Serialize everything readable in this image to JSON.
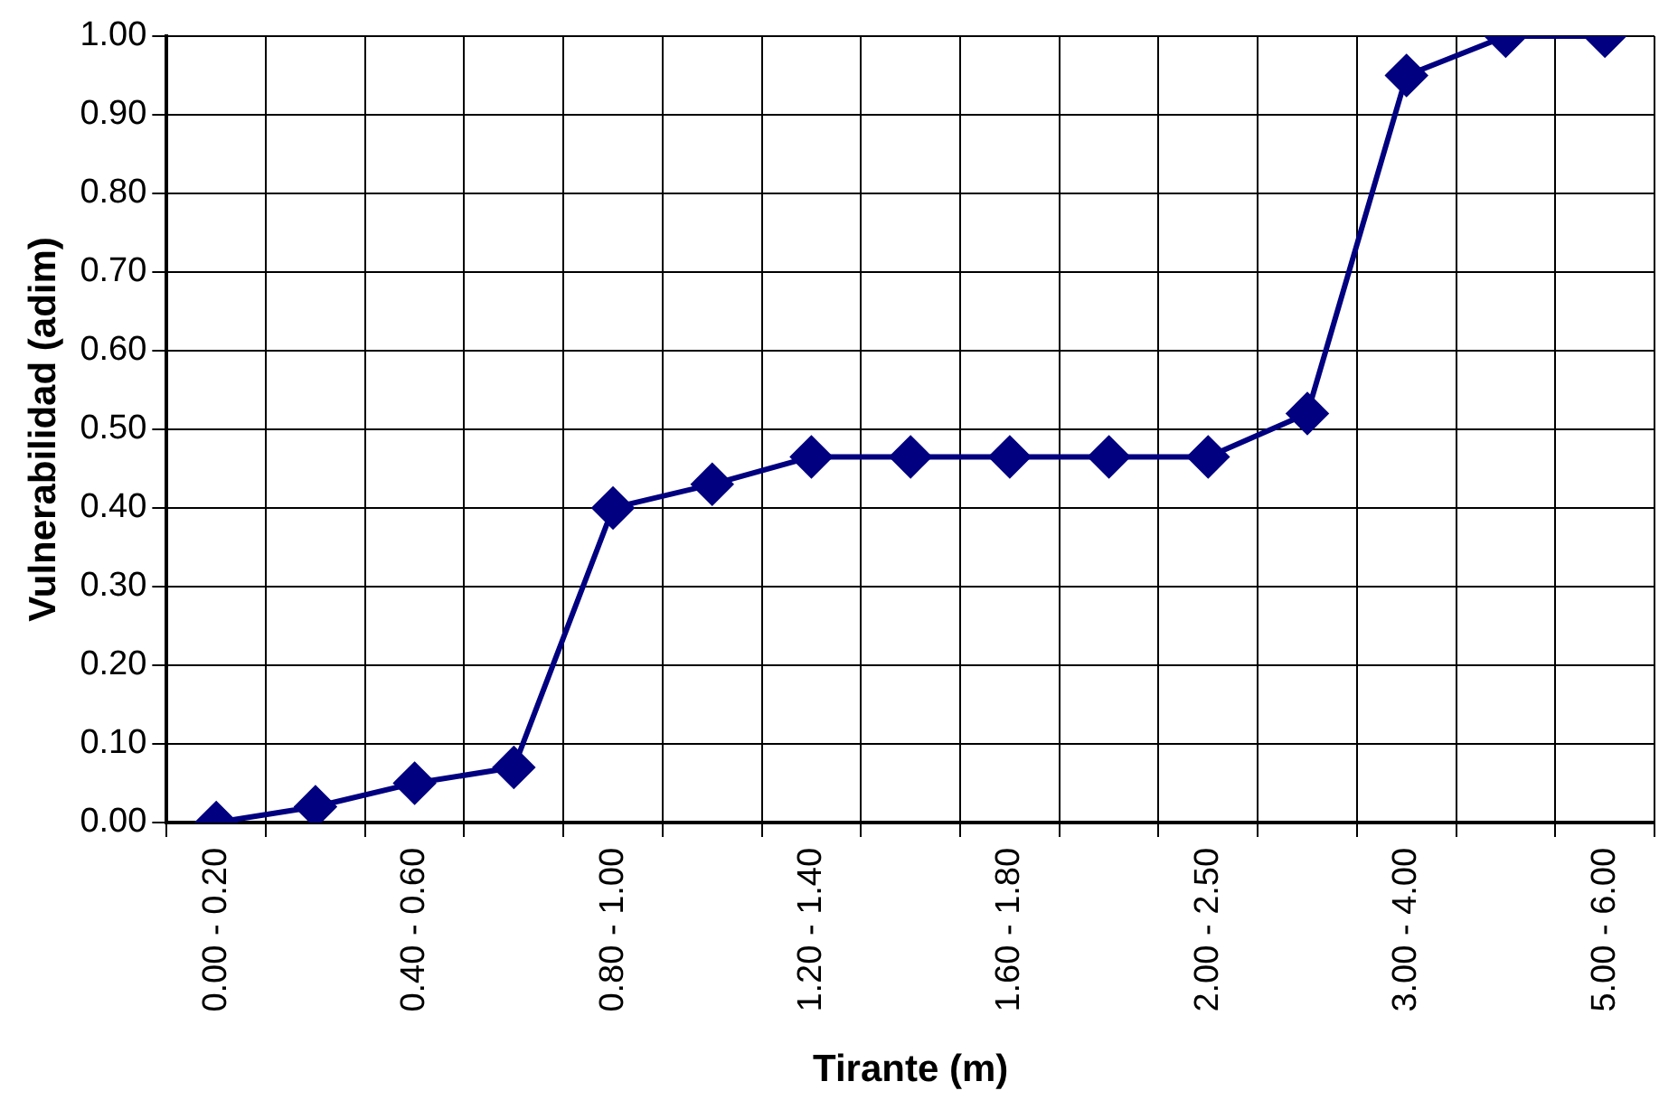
{
  "chart_data": {
    "type": "line",
    "xlabel": "Tirante (m)",
    "ylabel": "Vulnerabilidad (adim)",
    "categories": [
      "0.00 - 0.20",
      null,
      "0.40 - 0.60",
      null,
      "0.80 - 1.00",
      null,
      "1.20 - 1.40",
      null,
      "1.60 - 1.80",
      null,
      "2.00 - 2.50",
      null,
      "3.00 - 4.00",
      null,
      "5.00 - 6.00"
    ],
    "series": [
      {
        "color": "#000080",
        "values": [
          0.0,
          0.02,
          0.05,
          0.07,
          0.4,
          0.43,
          0.465,
          0.465,
          0.465,
          0.465,
          0.465,
          0.52,
          0.95,
          1.0,
          1.0
        ]
      }
    ],
    "ylim": [
      0,
      1
    ],
    "yticks": [
      {
        "value": 0,
        "label": "0.00"
      },
      {
        "value": 0.1,
        "label": "0.10"
      },
      {
        "value": 0.2,
        "label": "0.20"
      },
      {
        "value": 0.3,
        "label": "0.30"
      },
      {
        "value": 0.4,
        "label": "0.40"
      },
      {
        "value": 0.5,
        "label": "0.50"
      },
      {
        "value": 0.6,
        "label": "0.60"
      },
      {
        "value": 0.7,
        "label": "0.70"
      },
      {
        "value": 0.8,
        "label": "0.80"
      },
      {
        "value": 0.9,
        "label": "0.90"
      },
      {
        "value": 1,
        "label": "1.00"
      }
    ],
    "grid": true,
    "legend": false,
    "marker": "diamond",
    "line_style": "solid"
  }
}
